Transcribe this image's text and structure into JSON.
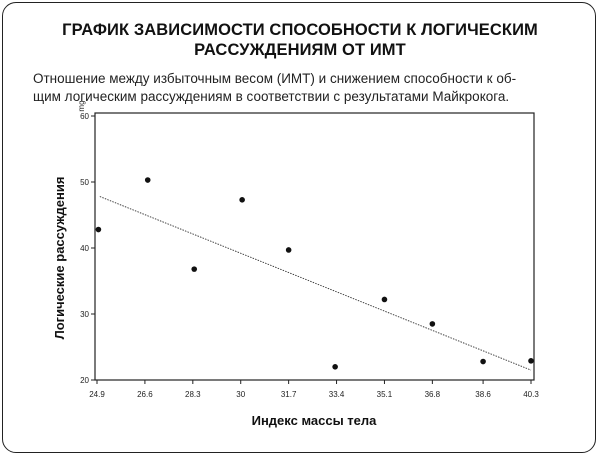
{
  "header": {
    "title_line1": "ГРАФИК ЗАВИСИМОСТИ СПОСОБНОСТИ К ЛОГИЧЕСКИМ",
    "title_line2": "РАССУЖДЕНИЯМ ОТ ИМТ",
    "subtitle_line1": "Отношение между избыточным весом (ИМТ) и снижением способности к об-",
    "subtitle_line2": "щим логическим рассуждениям в соответствии с результатами Майкрокога."
  },
  "chart_data": {
    "type": "scatter",
    "title": "ГРАФИК ЗАВИСИМОСТИ СПОСОБНОСТИ К ЛОГИЧЕСКИМ РАССУЖДЕНИЯМ ОТ ИМТ",
    "xlabel": "Индекс массы тела",
    "ylabel": "Логические рассуждения",
    "y_unit": "mg",
    "x_ticks": [
      "24.9",
      "26.6",
      "28.3",
      "30",
      "31.7",
      "33.4",
      "35.1",
      "36.8",
      "38.6",
      "40.3"
    ],
    "y_ticks": [
      "20",
      "30",
      "40",
      "50",
      "60"
    ],
    "xlim": [
      24.9,
      40.3
    ],
    "ylim": [
      20,
      60
    ],
    "grid": false,
    "points": [
      {
        "x": 24.95,
        "y": 42.8
      },
      {
        "x": 26.7,
        "y": 50.3
      },
      {
        "x": 28.35,
        "y": 36.8
      },
      {
        "x": 30.05,
        "y": 47.3
      },
      {
        "x": 31.7,
        "y": 39.7
      },
      {
        "x": 33.35,
        "y": 22.0
      },
      {
        "x": 35.1,
        "y": 32.2
      },
      {
        "x": 36.8,
        "y": 28.5
      },
      {
        "x": 38.6,
        "y": 22.8
      },
      {
        "x": 40.3,
        "y": 22.9
      }
    ],
    "trendline": {
      "x": [
        25.0,
        40.3
      ],
      "y": [
        47.8,
        21.5
      ]
    }
  }
}
